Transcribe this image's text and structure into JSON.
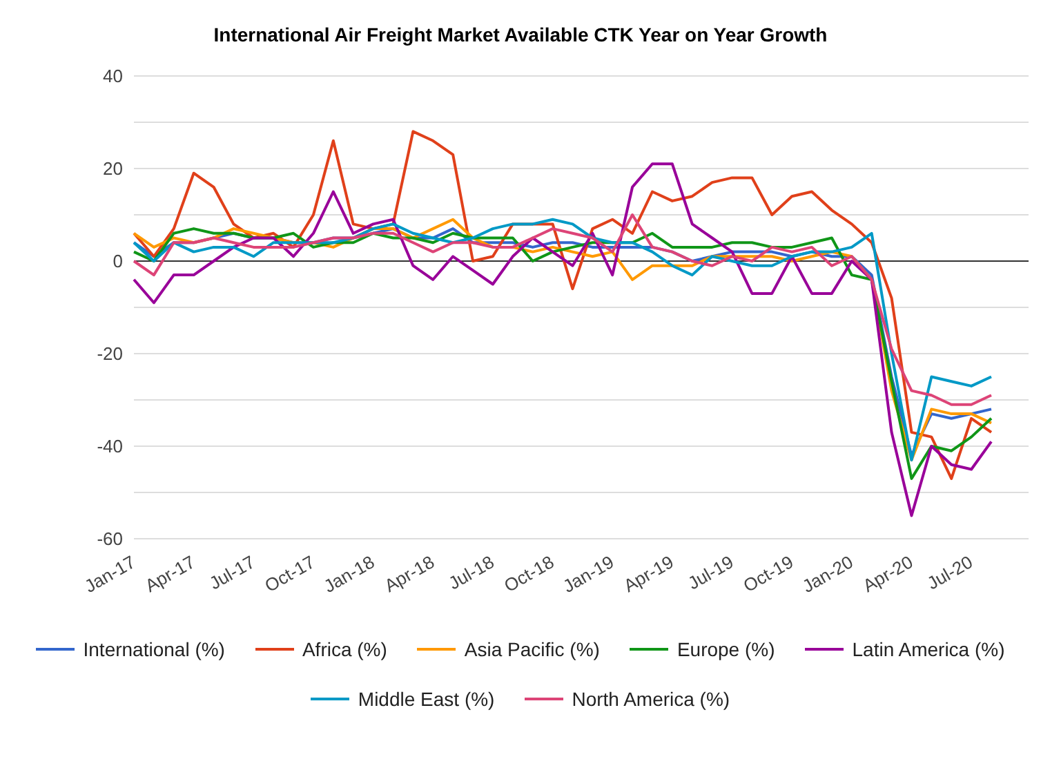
{
  "chart_data": {
    "type": "line",
    "title": "International Air Freight Market Available CTK Year on Year Growth",
    "categories": [
      "Jan-17",
      null,
      null,
      "Apr-17",
      null,
      null,
      "Jul-17",
      null,
      null,
      "Oct-17",
      null,
      null,
      "Jan-18",
      null,
      null,
      "Apr-18",
      null,
      null,
      "Jul-18",
      null,
      null,
      "Oct-18",
      null,
      null,
      "Jan-19",
      null,
      null,
      "Apr-19",
      null,
      null,
      "Jul-19",
      null,
      null,
      "Oct-19",
      null,
      null,
      "Jan-20",
      null,
      null,
      "Apr-20",
      null,
      null,
      "Jul-20",
      null
    ],
    "series": [
      {
        "name": "International (%)",
        "color": "#3366cc",
        "values": [
          4,
          1,
          4,
          4,
          5,
          6,
          5,
          5,
          4,
          4,
          5,
          5,
          6,
          7,
          5,
          5,
          7,
          4,
          4,
          4,
          3,
          4,
          4,
          3,
          3,
          3,
          3,
          2,
          0,
          1,
          2,
          2,
          2,
          1,
          2,
          1,
          1,
          -3,
          -25,
          -42,
          -33,
          -34,
          -33,
          -32
        ]
      },
      {
        "name": "Africa (%)",
        "color": "#e0401a",
        "values": [
          6,
          1,
          7,
          19,
          16,
          8,
          5,
          6,
          3,
          10,
          26,
          8,
          7,
          8,
          28,
          26,
          23,
          0,
          1,
          8,
          8,
          8,
          -6,
          7,
          9,
          6,
          15,
          13,
          14,
          17,
          18,
          18,
          10,
          14,
          15,
          11,
          8,
          4,
          -8,
          -37,
          -38,
          -47,
          -34,
          -37
        ]
      },
      {
        "name": "Asia Pacific (%)",
        "color": "#ff9900",
        "values": [
          6,
          3,
          5,
          4,
          5,
          7,
          6,
          5,
          4,
          4,
          3,
          5,
          7,
          7,
          5,
          7,
          9,
          5,
          3,
          3,
          2,
          3,
          2,
          1,
          2,
          -4,
          -1,
          -1,
          -1,
          1,
          1,
          1,
          1,
          0,
          1,
          2,
          1,
          -4,
          -28,
          -43,
          -32,
          -33,
          -33,
          -35
        ]
      },
      {
        "name": "Europe (%)",
        "color": "#109618",
        "values": [
          2,
          0,
          6,
          7,
          6,
          6,
          5,
          5,
          6,
          3,
          4,
          4,
          6,
          5,
          5,
          4,
          6,
          5,
          5,
          5,
          0,
          2,
          3,
          4,
          4,
          4,
          6,
          3,
          3,
          3,
          4,
          4,
          3,
          3,
          4,
          5,
          -3,
          -4,
          -26,
          -47,
          -40,
          -41,
          -38,
          -34
        ]
      },
      {
        "name": "Latin America (%)",
        "color": "#990099",
        "values": [
          -4,
          -9,
          -3,
          -3,
          0,
          3,
          5,
          5,
          1,
          6,
          15,
          6,
          8,
          9,
          -1,
          -4,
          1,
          -2,
          -5,
          1,
          5,
          2,
          -1,
          6,
          -3,
          16,
          21,
          21,
          8,
          5,
          2,
          -7,
          -7,
          1,
          -7,
          -7,
          0,
          -4,
          -37,
          -55,
          -40,
          -44,
          -45,
          -39
        ]
      },
      {
        "name": "Middle East (%)",
        "color": "#0099c6",
        "values": [
          4,
          0,
          4,
          2,
          3,
          3,
          1,
          4,
          4,
          4,
          4,
          5,
          7,
          8,
          6,
          5,
          4,
          5,
          7,
          8,
          8,
          9,
          8,
          5,
          4,
          4,
          2,
          -1,
          -3,
          1,
          0,
          -1,
          -1,
          1,
          2,
          2,
          3,
          6,
          -20,
          -43,
          -25,
          -26,
          -27,
          -25
        ]
      },
      {
        "name": "North America (%)",
        "color": "#dd4477",
        "values": [
          0,
          -3,
          4,
          4,
          5,
          4,
          3,
          3,
          3,
          4,
          5,
          5,
          6,
          6,
          4,
          2,
          4,
          4,
          3,
          3,
          5,
          7,
          6,
          5,
          2,
          10,
          3,
          2,
          0,
          -1,
          1,
          0,
          3,
          2,
          3,
          -1,
          1,
          -4,
          -19,
          -28,
          -29,
          -31,
          -31,
          -29
        ]
      }
    ],
    "ylim": [
      -60,
      40
    ],
    "yticks": [
      -60,
      {
        "value": -50,
        "label": null
      },
      -40,
      {
        "value": -30,
        "label": null
      },
      -20,
      {
        "value": -10,
        "label": null
      },
      0,
      {
        "value": 10,
        "label": null
      },
      20,
      {
        "value": 30,
        "label": null
      },
      40
    ],
    "ref_lines": [
      {
        "axis": "y",
        "value": 0,
        "color": "#333333"
      }
    ],
    "grid": "y",
    "legend": "bottom"
  }
}
